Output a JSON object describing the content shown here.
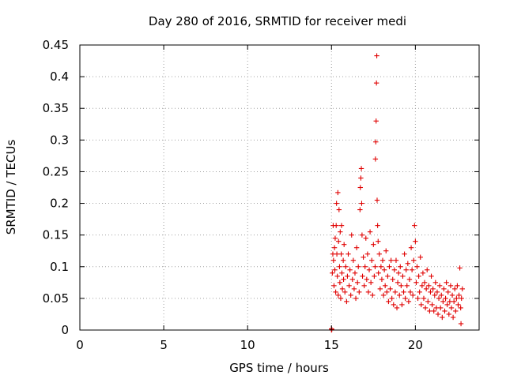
{
  "chart_data": {
    "type": "scatter",
    "title": "Day 280 of 2016, SRMTID for receiver medi",
    "xlabel": "GPS time / hours",
    "ylabel": "SRMTID / TECUs",
    "xlim": [
      0,
      23.8
    ],
    "ylim": [
      0,
      0.45
    ],
    "xticks": [
      0,
      5,
      10,
      15,
      20
    ],
    "xtick_labels": [
      "0",
      "5",
      "10",
      "15",
      "20"
    ],
    "yticks": [
      0,
      0.05,
      0.1,
      0.15,
      0.2,
      0.25,
      0.3,
      0.35,
      0.4,
      0.45
    ],
    "ytick_labels": [
      "0",
      "0.05",
      "0.1",
      "0.15",
      "0.2",
      "0.25",
      "0.3",
      "0.35",
      "0.4",
      "0.45"
    ],
    "grid": true,
    "marker": "+",
    "color": "#e00000",
    "series": [
      {
        "name": "SRMTID",
        "points": [
          [
            15.0,
            0.0
          ],
          [
            15.0,
            0.002
          ],
          [
            15.02,
            0.001
          ],
          [
            15.05,
            0.09
          ],
          [
            15.08,
            0.12
          ],
          [
            15.1,
            0.165
          ],
          [
            15.12,
            0.11
          ],
          [
            15.15,
            0.07
          ],
          [
            15.18,
            0.13
          ],
          [
            15.2,
            0.095
          ],
          [
            15.22,
            0.145
          ],
          [
            15.25,
            0.06
          ],
          [
            15.28,
            0.165
          ],
          [
            15.3,
            0.2
          ],
          [
            15.32,
            0.12
          ],
          [
            15.35,
            0.085
          ],
          [
            15.38,
            0.217
          ],
          [
            15.4,
            0.055
          ],
          [
            15.42,
            0.14
          ],
          [
            15.45,
            0.19
          ],
          [
            15.48,
            0.1
          ],
          [
            15.5,
            0.075
          ],
          [
            15.52,
            0.155
          ],
          [
            15.55,
            0.05
          ],
          [
            15.58,
            0.12
          ],
          [
            15.6,
            0.165
          ],
          [
            15.62,
            0.09
          ],
          [
            15.65,
            0.065
          ],
          [
            15.7,
            0.11
          ],
          [
            15.72,
            0.08
          ],
          [
            15.75,
            0.135
          ],
          [
            15.8,
            0.06
          ],
          [
            15.85,
            0.1
          ],
          [
            15.9,
            0.045
          ],
          [
            15.95,
            0.085
          ],
          [
            16.0,
            0.12
          ],
          [
            16.05,
            0.07
          ],
          [
            16.1,
            0.095
          ],
          [
            16.15,
            0.055
          ],
          [
            16.2,
            0.15
          ],
          [
            16.25,
            0.08
          ],
          [
            16.3,
            0.11
          ],
          [
            16.35,
            0.065
          ],
          [
            16.4,
            0.09
          ],
          [
            16.45,
            0.05
          ],
          [
            16.5,
            0.13
          ],
          [
            16.55,
            0.075
          ],
          [
            16.6,
            0.1
          ],
          [
            16.65,
            0.06
          ],
          [
            16.7,
            0.19
          ],
          [
            16.72,
            0.225
          ],
          [
            16.75,
            0.24
          ],
          [
            16.78,
            0.255
          ],
          [
            16.8,
            0.2
          ],
          [
            16.82,
            0.15
          ],
          [
            16.85,
            0.085
          ],
          [
            16.9,
            0.115
          ],
          [
            16.95,
            0.07
          ],
          [
            17.0,
            0.1
          ],
          [
            17.05,
            0.145
          ],
          [
            17.1,
            0.08
          ],
          [
            17.15,
            0.12
          ],
          [
            17.2,
            0.06
          ],
          [
            17.25,
            0.095
          ],
          [
            17.3,
            0.155
          ],
          [
            17.35,
            0.075
          ],
          [
            17.4,
            0.11
          ],
          [
            17.45,
            0.055
          ],
          [
            17.5,
            0.135
          ],
          [
            17.55,
            0.085
          ],
          [
            17.6,
            0.1
          ],
          [
            17.62,
            0.27
          ],
          [
            17.64,
            0.297
          ],
          [
            17.66,
            0.33
          ],
          [
            17.68,
            0.39
          ],
          [
            17.7,
            0.433
          ],
          [
            17.72,
            0.205
          ],
          [
            17.75,
            0.165
          ],
          [
            17.78,
            0.14
          ],
          [
            17.8,
            0.09
          ],
          [
            17.85,
            0.12
          ],
          [
            17.9,
            0.065
          ],
          [
            17.95,
            0.1
          ],
          [
            18.0,
            0.08
          ],
          [
            18.05,
            0.11
          ],
          [
            18.1,
            0.055
          ],
          [
            18.15,
            0.095
          ],
          [
            18.2,
            0.07
          ],
          [
            18.25,
            0.125
          ],
          [
            18.3,
            0.06
          ],
          [
            18.35,
            0.085
          ],
          [
            18.4,
            0.045
          ],
          [
            18.45,
            0.1
          ],
          [
            18.5,
            0.065
          ],
          [
            18.55,
            0.11
          ],
          [
            18.6,
            0.05
          ],
          [
            18.65,
            0.08
          ],
          [
            18.7,
            0.04
          ],
          [
            18.75,
            0.095
          ],
          [
            18.8,
            0.06
          ],
          [
            18.85,
            0.11
          ],
          [
            18.9,
            0.035
          ],
          [
            18.95,
            0.075
          ],
          [
            19.0,
            0.09
          ],
          [
            19.05,
            0.055
          ],
          [
            19.1,
            0.1
          ],
          [
            19.15,
            0.07
          ],
          [
            19.2,
            0.04
          ],
          [
            19.25,
            0.085
          ],
          [
            19.3,
            0.06
          ],
          [
            19.35,
            0.12
          ],
          [
            19.4,
            0.05
          ],
          [
            19.45,
            0.095
          ],
          [
            19.5,
            0.07
          ],
          [
            19.55,
            0.105
          ],
          [
            19.6,
            0.045
          ],
          [
            19.65,
            0.08
          ],
          [
            19.7,
            0.06
          ],
          [
            19.75,
            0.13
          ],
          [
            19.8,
            0.095
          ],
          [
            19.85,
            0.055
          ],
          [
            19.9,
            0.11
          ],
          [
            19.95,
            0.165
          ],
          [
            20.0,
            0.14
          ],
          [
            20.05,
            0.075
          ],
          [
            20.1,
            0.1
          ],
          [
            20.15,
            0.05
          ],
          [
            20.2,
            0.085
          ],
          [
            20.25,
            0.06
          ],
          [
            20.3,
            0.115
          ],
          [
            20.35,
            0.04
          ],
          [
            20.4,
            0.07
          ],
          [
            20.45,
            0.09
          ],
          [
            20.5,
            0.05
          ],
          [
            20.55,
            0.075
          ],
          [
            20.6,
            0.035
          ],
          [
            20.65,
            0.065
          ],
          [
            20.7,
            0.095
          ],
          [
            20.75,
            0.045
          ],
          [
            20.8,
            0.07
          ],
          [
            20.85,
            0.03
          ],
          [
            20.9,
            0.06
          ],
          [
            20.95,
            0.085
          ],
          [
            21.0,
            0.04
          ],
          [
            21.05,
            0.065
          ],
          [
            21.1,
            0.03
          ],
          [
            21.15,
            0.055
          ],
          [
            21.2,
            0.075
          ],
          [
            21.25,
            0.035
          ],
          [
            21.3,
            0.06
          ],
          [
            21.35,
            0.025
          ],
          [
            21.4,
            0.05
          ],
          [
            21.45,
            0.07
          ],
          [
            21.5,
            0.035
          ],
          [
            21.55,
            0.055
          ],
          [
            21.6,
            0.02
          ],
          [
            21.65,
            0.045
          ],
          [
            21.7,
            0.065
          ],
          [
            21.75,
            0.03
          ],
          [
            21.8,
            0.05
          ],
          [
            21.85,
            0.075
          ],
          [
            21.9,
            0.04
          ],
          [
            21.95,
            0.06
          ],
          [
            22.0,
            0.025
          ],
          [
            22.05,
            0.045
          ],
          [
            22.1,
            0.07
          ],
          [
            22.15,
            0.035
          ],
          [
            22.2,
            0.055
          ],
          [
            22.25,
            0.02
          ],
          [
            22.3,
            0.045
          ],
          [
            22.35,
            0.065
          ],
          [
            22.4,
            0.03
          ],
          [
            22.45,
            0.05
          ],
          [
            22.5,
            0.07
          ],
          [
            22.55,
            0.04
          ],
          [
            22.6,
            0.055
          ],
          [
            22.65,
            0.098
          ],
          [
            22.7,
            0.035
          ],
          [
            22.72,
            0.01
          ],
          [
            22.75,
            0.05
          ],
          [
            22.8,
            0.065
          ]
        ]
      }
    ]
  }
}
